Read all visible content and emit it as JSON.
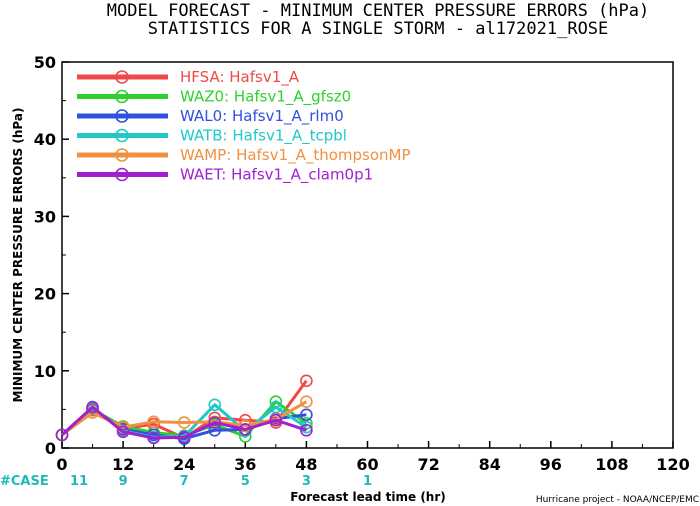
{
  "chart_data": {
    "type": "line",
    "title_line1": "MODEL FORECAST - MINIMUM CENTER PRESSURE ERRORS (hPa)",
    "title_line2": "STATISTICS FOR A SINGLE STORM - al172021_ROSE",
    "ylabel": "MINIMUM CENTER PRESSURE ERRORS (hPa)",
    "xlabel": "Forecast lead time (hr)",
    "xlim": [
      0,
      120
    ],
    "ylim": [
      0,
      50
    ],
    "x_ticks": [
      0,
      12,
      24,
      36,
      48,
      60,
      72,
      84,
      96,
      108,
      120
    ],
    "y_ticks": [
      0,
      10,
      20,
      30,
      40,
      50
    ],
    "legend_position": "top-left",
    "series": [
      {
        "name": "HFSA: Hafsv1_A",
        "color": "#f04848",
        "x": [
          0,
          6,
          12,
          18,
          24,
          30,
          36,
          42,
          48
        ],
        "values": [
          1.7,
          4.9,
          2.5,
          3.1,
          1.3,
          3.9,
          3.6,
          3.3,
          8.7
        ]
      },
      {
        "name": "WAZ0: Hafsv1_A_gfsz0",
        "color": "#2ed02e",
        "x": [
          0,
          6,
          12,
          18,
          24,
          30,
          36,
          42,
          48
        ],
        "values": [
          1.7,
          5.0,
          2.8,
          2.0,
          1.6,
          3.0,
          1.5,
          6.0,
          3.2
        ]
      },
      {
        "name": "WAL0: Hafsv1_A_rlm0",
        "color": "#3050e0",
        "x": [
          0,
          6,
          12,
          18,
          24,
          30,
          36,
          42,
          48
        ],
        "values": [
          1.7,
          5.1,
          2.4,
          1.7,
          1.2,
          2.3,
          2.4,
          3.8,
          4.3
        ]
      },
      {
        "name": "WATB: Hafsv1_A_tcpbl",
        "color": "#20c8c8",
        "x": [
          0,
          6,
          12,
          18,
          24,
          30,
          36,
          42,
          48
        ],
        "values": [
          1.7,
          5.2,
          2.2,
          1.4,
          1.5,
          5.6,
          2.2,
          5.3,
          2.7
        ]
      },
      {
        "name": "WAMP: Hafsv1_A_thompsonMP",
        "color": "#f09040",
        "x": [
          0,
          6,
          12,
          18,
          24,
          30,
          36,
          42,
          48
        ],
        "values": [
          1.7,
          4.6,
          2.7,
          3.4,
          3.3,
          3.4,
          2.9,
          3.7,
          6.0
        ]
      },
      {
        "name": "WAET: Hafsv1_A_clam0p1",
        "color": "#a020d0",
        "x": [
          0,
          6,
          12,
          18,
          24,
          30,
          36,
          42,
          48
        ],
        "values": [
          1.7,
          5.3,
          2.1,
          1.3,
          1.4,
          3.3,
          2.4,
          3.6,
          2.3
        ]
      }
    ],
    "cases": {
      "label": "#CASE",
      "color": "#20b8b8",
      "x": [
        0,
        12,
        24,
        36,
        48,
        60
      ],
      "counts": [
        "11",
        "9",
        "7",
        "5",
        "3",
        "1"
      ]
    },
    "credit": "Hurricane project - NOAA/NCEP/EMC"
  }
}
